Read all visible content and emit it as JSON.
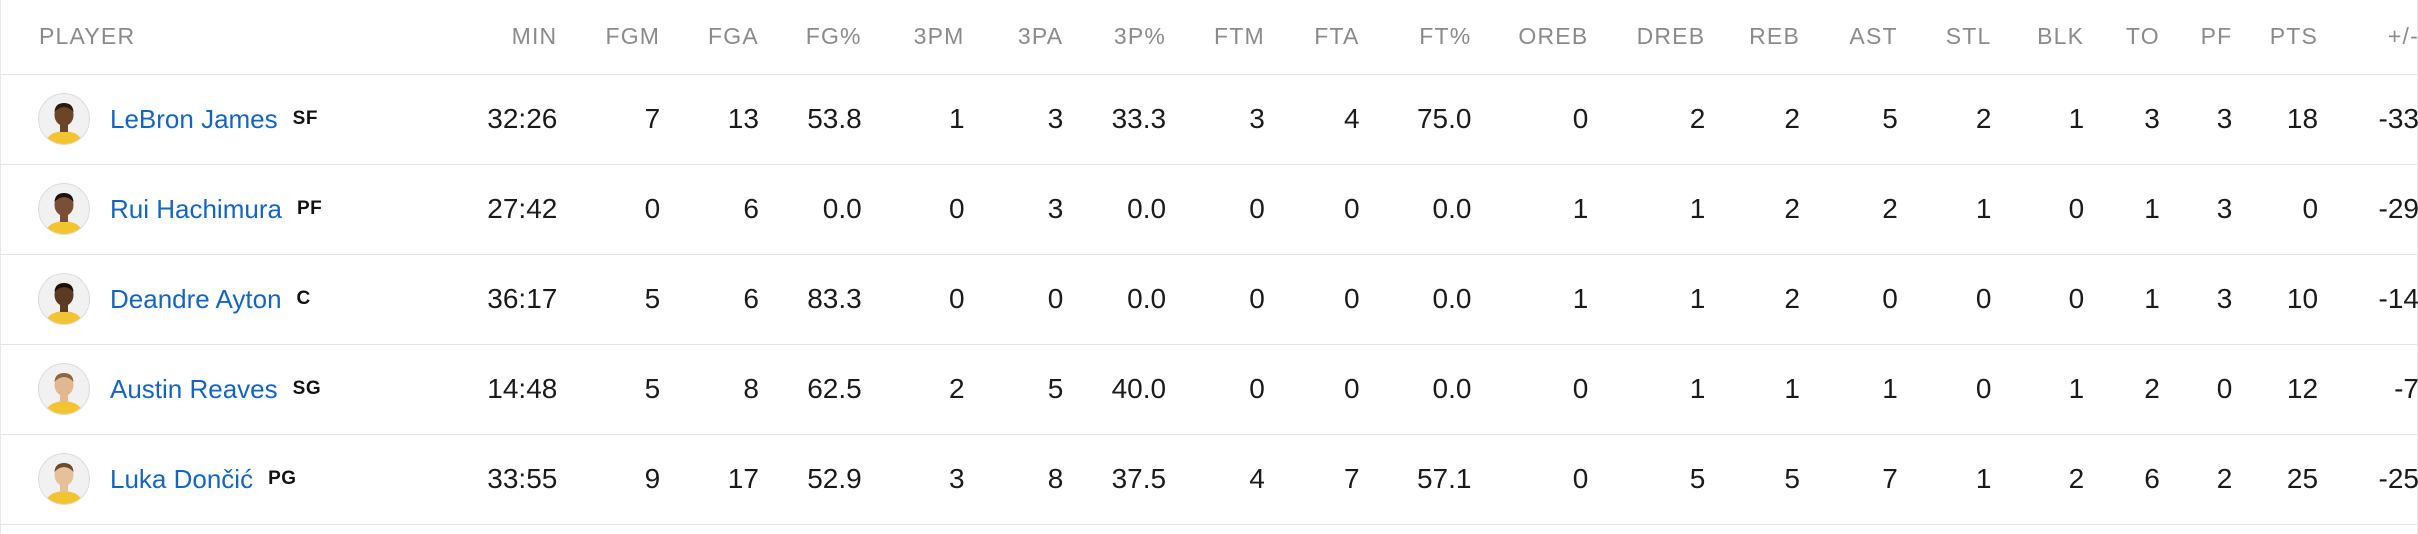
{
  "table": {
    "columns": [
      "PLAYER",
      "MIN",
      "FGM",
      "FGA",
      "FG%",
      "3PM",
      "3PA",
      "3P%",
      "FTM",
      "FTA",
      "FT%",
      "OREB",
      "DREB",
      "REB",
      "AST",
      "STL",
      "BLK",
      "TO",
      "PF",
      "PTS",
      "+/-"
    ],
    "rows": [
      {
        "name": "LeBron James",
        "pos": "SF",
        "skin": "#6b4528",
        "hair": "#2a1a10",
        "stats": [
          "32:26",
          "7",
          "13",
          "53.8",
          "1",
          "3",
          "33.3",
          "3",
          "4",
          "75.0",
          "0",
          "2",
          "2",
          "5",
          "2",
          "1",
          "3",
          "3",
          "18",
          "-33"
        ]
      },
      {
        "name": "Rui Hachimura",
        "pos": "PF",
        "skin": "#7a5034",
        "hair": "#1c120c",
        "stats": [
          "27:42",
          "0",
          "6",
          "0.0",
          "0",
          "3",
          "0.0",
          "0",
          "0",
          "0.0",
          "1",
          "1",
          "2",
          "2",
          "1",
          "0",
          "1",
          "3",
          "0",
          "-29"
        ]
      },
      {
        "name": "Deandre Ayton",
        "pos": "C",
        "skin": "#5a3a22",
        "hair": "#1a110a",
        "stats": [
          "36:17",
          "5",
          "6",
          "83.3",
          "0",
          "0",
          "0.0",
          "0",
          "0",
          "0.0",
          "1",
          "1",
          "2",
          "0",
          "0",
          "0",
          "1",
          "3",
          "10",
          "-14"
        ]
      },
      {
        "name": "Austin Reaves",
        "pos": "SG",
        "skin": "#e2b892",
        "hair": "#8a6a3a",
        "stats": [
          "14:48",
          "5",
          "8",
          "62.5",
          "2",
          "5",
          "40.0",
          "0",
          "0",
          "0.0",
          "0",
          "1",
          "1",
          "1",
          "0",
          "1",
          "2",
          "0",
          "12",
          "-7"
        ]
      },
      {
        "name": "Luka Dončić",
        "pos": "PG",
        "skin": "#e6bf9c",
        "hair": "#6b4a2a",
        "stats": [
          "33:55",
          "9",
          "17",
          "52.9",
          "3",
          "8",
          "37.5",
          "4",
          "7",
          "57.1",
          "0",
          "5",
          "5",
          "7",
          "1",
          "2",
          "6",
          "2",
          "25",
          "-25"
        ]
      }
    ]
  },
  "colors": {
    "link": "#1565c0",
    "header_text": "#8a8a8a",
    "jersey": "#f3c432",
    "divider": "#e3e3e3"
  }
}
